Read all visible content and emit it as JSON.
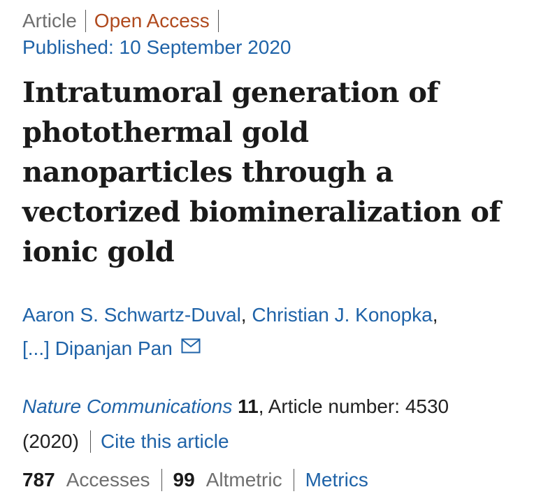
{
  "header": {
    "article_type": "Article",
    "access": "Open Access",
    "published": "Published: 10 September 2020"
  },
  "title_lines": [
    "Intratumoral generation of",
    "photothermal gold",
    "nanoparticles through a",
    "vectorized biomineralization of",
    "ionic gold"
  ],
  "authors": {
    "first": "Aaron S. Schwartz-Duval",
    "second": "Christian J. Konopka",
    "ellipsis": "[...]",
    "last": "Dipanjan Pan"
  },
  "citation": {
    "journal": "Nature Communications",
    "volume": "11",
    "article_number": "Article number: 4530",
    "year": "(2020)",
    "cite_link": "Cite this article"
  },
  "metrics": {
    "accesses_count": "787",
    "accesses_label": "Accesses",
    "altmetric_count": "99",
    "altmetric_label": "Altmetric",
    "metrics_link": "Metrics"
  },
  "icons": {
    "mail": "envelope-icon"
  },
  "colors": {
    "link": "#1f63a8",
    "open_access": "#b04a1e",
    "muted": "#6f6f6f",
    "text": "#222222"
  }
}
